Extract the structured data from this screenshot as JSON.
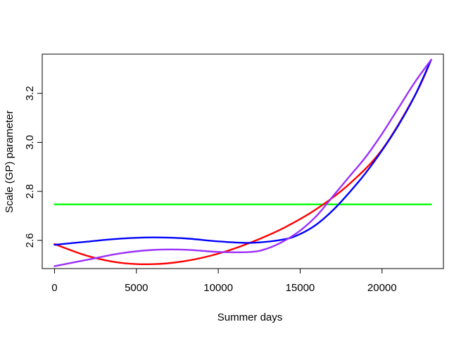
{
  "chart_data": {
    "type": "line",
    "title": "",
    "xlabel": "Summer days",
    "ylabel": "Scale (GP) parameter",
    "xlim": [
      -750,
      23750
    ],
    "ylim": [
      2.485,
      3.36
    ],
    "x_ticks": [
      0,
      5000,
      10000,
      15000,
      20000
    ],
    "x_tick_labels": [
      "0",
      "5000",
      "10000",
      "15000",
      "20000"
    ],
    "y_ticks": [
      2.6,
      2.8,
      3.0,
      3.2
    ],
    "y_tick_labels": [
      "2.6",
      "2.8",
      "3.0",
      "3.2"
    ],
    "grid": false,
    "legend": null,
    "series": [
      {
        "color": "#00ff00",
        "x": [
          0,
          23000
        ],
        "y": [
          2.747,
          2.747
        ]
      },
      {
        "color": "#ff0000",
        "x": [
          0,
          2000,
          4000,
          6000,
          8000,
          10000,
          12000,
          14000,
          16000,
          18000,
          20000,
          22000,
          23000
        ],
        "y": [
          2.585,
          2.537,
          2.509,
          2.503,
          2.516,
          2.546,
          2.592,
          2.651,
          2.728,
          2.83,
          2.97,
          3.19,
          3.337
        ]
      },
      {
        "color": "#0000ff",
        "x": [
          0,
          2000,
          4000,
          6000,
          8000,
          10000,
          12000,
          14000,
          15000,
          16000,
          17000,
          18000,
          19000,
          20000,
          21000,
          22000,
          23000
        ],
        "y": [
          2.582,
          2.595,
          2.607,
          2.612,
          2.608,
          2.596,
          2.59,
          2.604,
          2.626,
          2.665,
          2.723,
          2.795,
          2.875,
          2.967,
          3.07,
          3.19,
          3.337
        ]
      },
      {
        "color": "#9b30ff",
        "x": [
          0,
          2000,
          4000,
          6000,
          8000,
          10000,
          12000,
          13000,
          14000,
          15000,
          16000,
          17000,
          18000,
          19000,
          20000,
          21000,
          22000,
          23000
        ],
        "y": [
          2.495,
          2.521,
          2.547,
          2.561,
          2.562,
          2.553,
          2.553,
          2.567,
          2.597,
          2.64,
          2.7,
          2.78,
          2.86,
          2.94,
          3.035,
          3.14,
          3.245,
          3.337
        ]
      }
    ]
  }
}
